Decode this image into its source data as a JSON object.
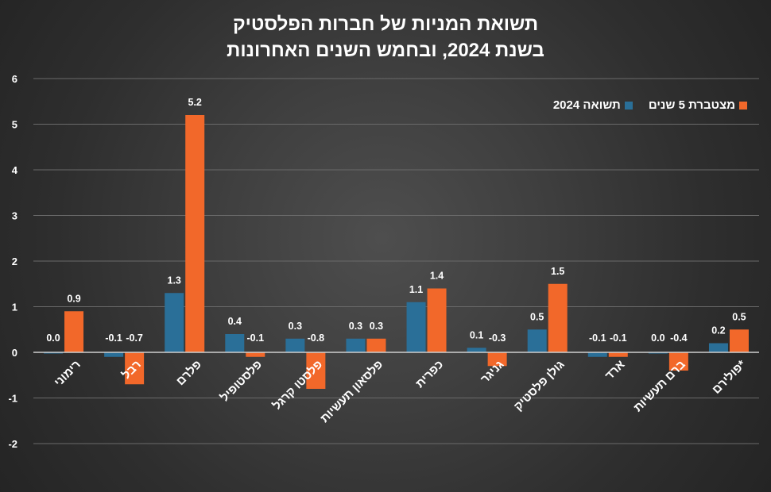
{
  "chart_data": {
    "type": "bar",
    "title_lines": [
      "תשואת המניות של חברות הפלסטיק",
      "בשנת 2024, ובחמש השנים האחרונות"
    ],
    "categories": [
      "רימוני",
      "רבל",
      "פלרם",
      "פלסטופיל",
      "פלסטו קרגל",
      "פלסאון תעשיות",
      "כפרית",
      "גניגר",
      "גולן פלסטיק",
      "ארד",
      "ברם תעשיות",
      "פולירם*"
    ],
    "series": [
      {
        "name": "תשואה 2024",
        "color": "#2a6f98",
        "values": [
          0.0,
          -0.1,
          1.3,
          0.4,
          0.3,
          0.3,
          1.1,
          0.1,
          0.5,
          -0.1,
          0.0,
          0.2
        ],
        "labels": [
          "0.0",
          "-0.1",
          "1.3",
          "0.4",
          "0.3",
          "0.3",
          "1.1",
          "0.1",
          "0.5",
          "-0.1",
          "0.0",
          "0.2"
        ]
      },
      {
        "name": "מצטברת 5 שנים",
        "color": "#f2682a",
        "values": [
          0.9,
          -0.7,
          5.2,
          -0.1,
          -0.8,
          0.3,
          1.4,
          -0.3,
          1.5,
          -0.1,
          -0.4,
          0.5
        ],
        "labels": [
          "0.9",
          "-0.7",
          "5.2",
          "-0.1",
          "-0.8",
          "0.3",
          "1.4",
          "-0.3",
          "1.5",
          "-0.1",
          "-0.4",
          "0.5"
        ]
      }
    ],
    "yticks": [
      "6",
      "5",
      "4",
      "3",
      "2",
      "1",
      "0",
      "-1",
      "-2"
    ],
    "ylim": [
      -2,
      6
    ],
    "legend_position": "top-right",
    "grid": true
  }
}
